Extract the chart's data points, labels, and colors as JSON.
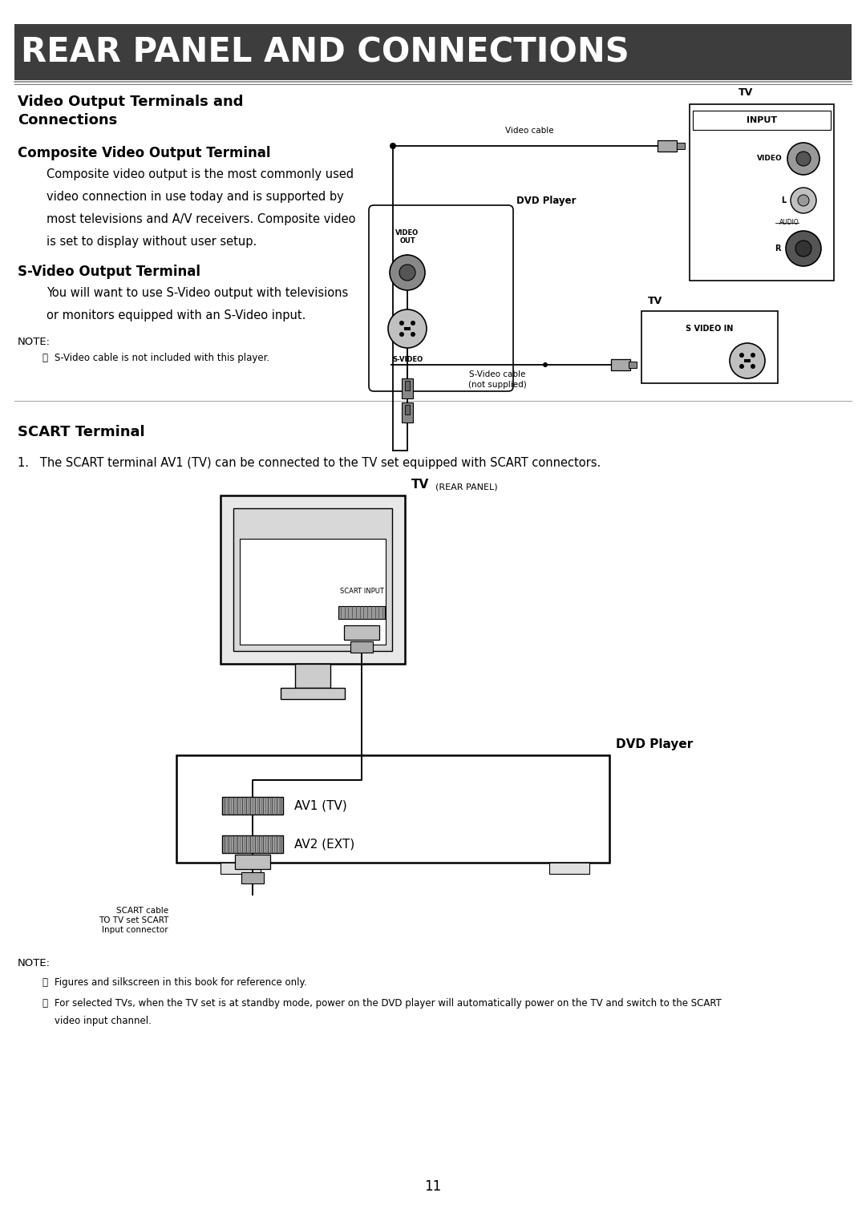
{
  "title_bar_text": "REAR PANEL AND CONNECTIONS",
  "title_bar_color": "#3d3d3d",
  "title_text_color": "#ffffff",
  "section1_title": "Video Output Terminals and\nConnections",
  "subsection1": "Composite Video Output Terminal",
  "para1_lines": [
    "Composite video output is the most commonly used",
    "video connection in use today and is supported by",
    "most televisions and A/V receivers. Composite video",
    "is set to display without user setup."
  ],
  "subsection2": "S-Video Output Terminal",
  "para2_lines": [
    "You will want to use S-Video output with televisions",
    "or monitors equipped with an S-Video input."
  ],
  "note_label": "NOTE:",
  "note1": "S-Video cable is not included with this player.",
  "section2_title": "SCART Terminal",
  "scart_para": "1.   The SCART terminal AV1 (TV) can be connected to the TV set equipped with SCART connectors.",
  "bottom_note_label": "NOTE:",
  "bottom_note1": "Figures and silkscreen in this book for reference only.",
  "bottom_note2": "For selected TVs, when the TV set is at standby mode, power on the DVD player will automatically power on the TV and switch to the SCART",
  "bottom_note2b": "video input channel.",
  "page_number": "11",
  "bg_color": "#ffffff",
  "body_text_color": "#000000"
}
